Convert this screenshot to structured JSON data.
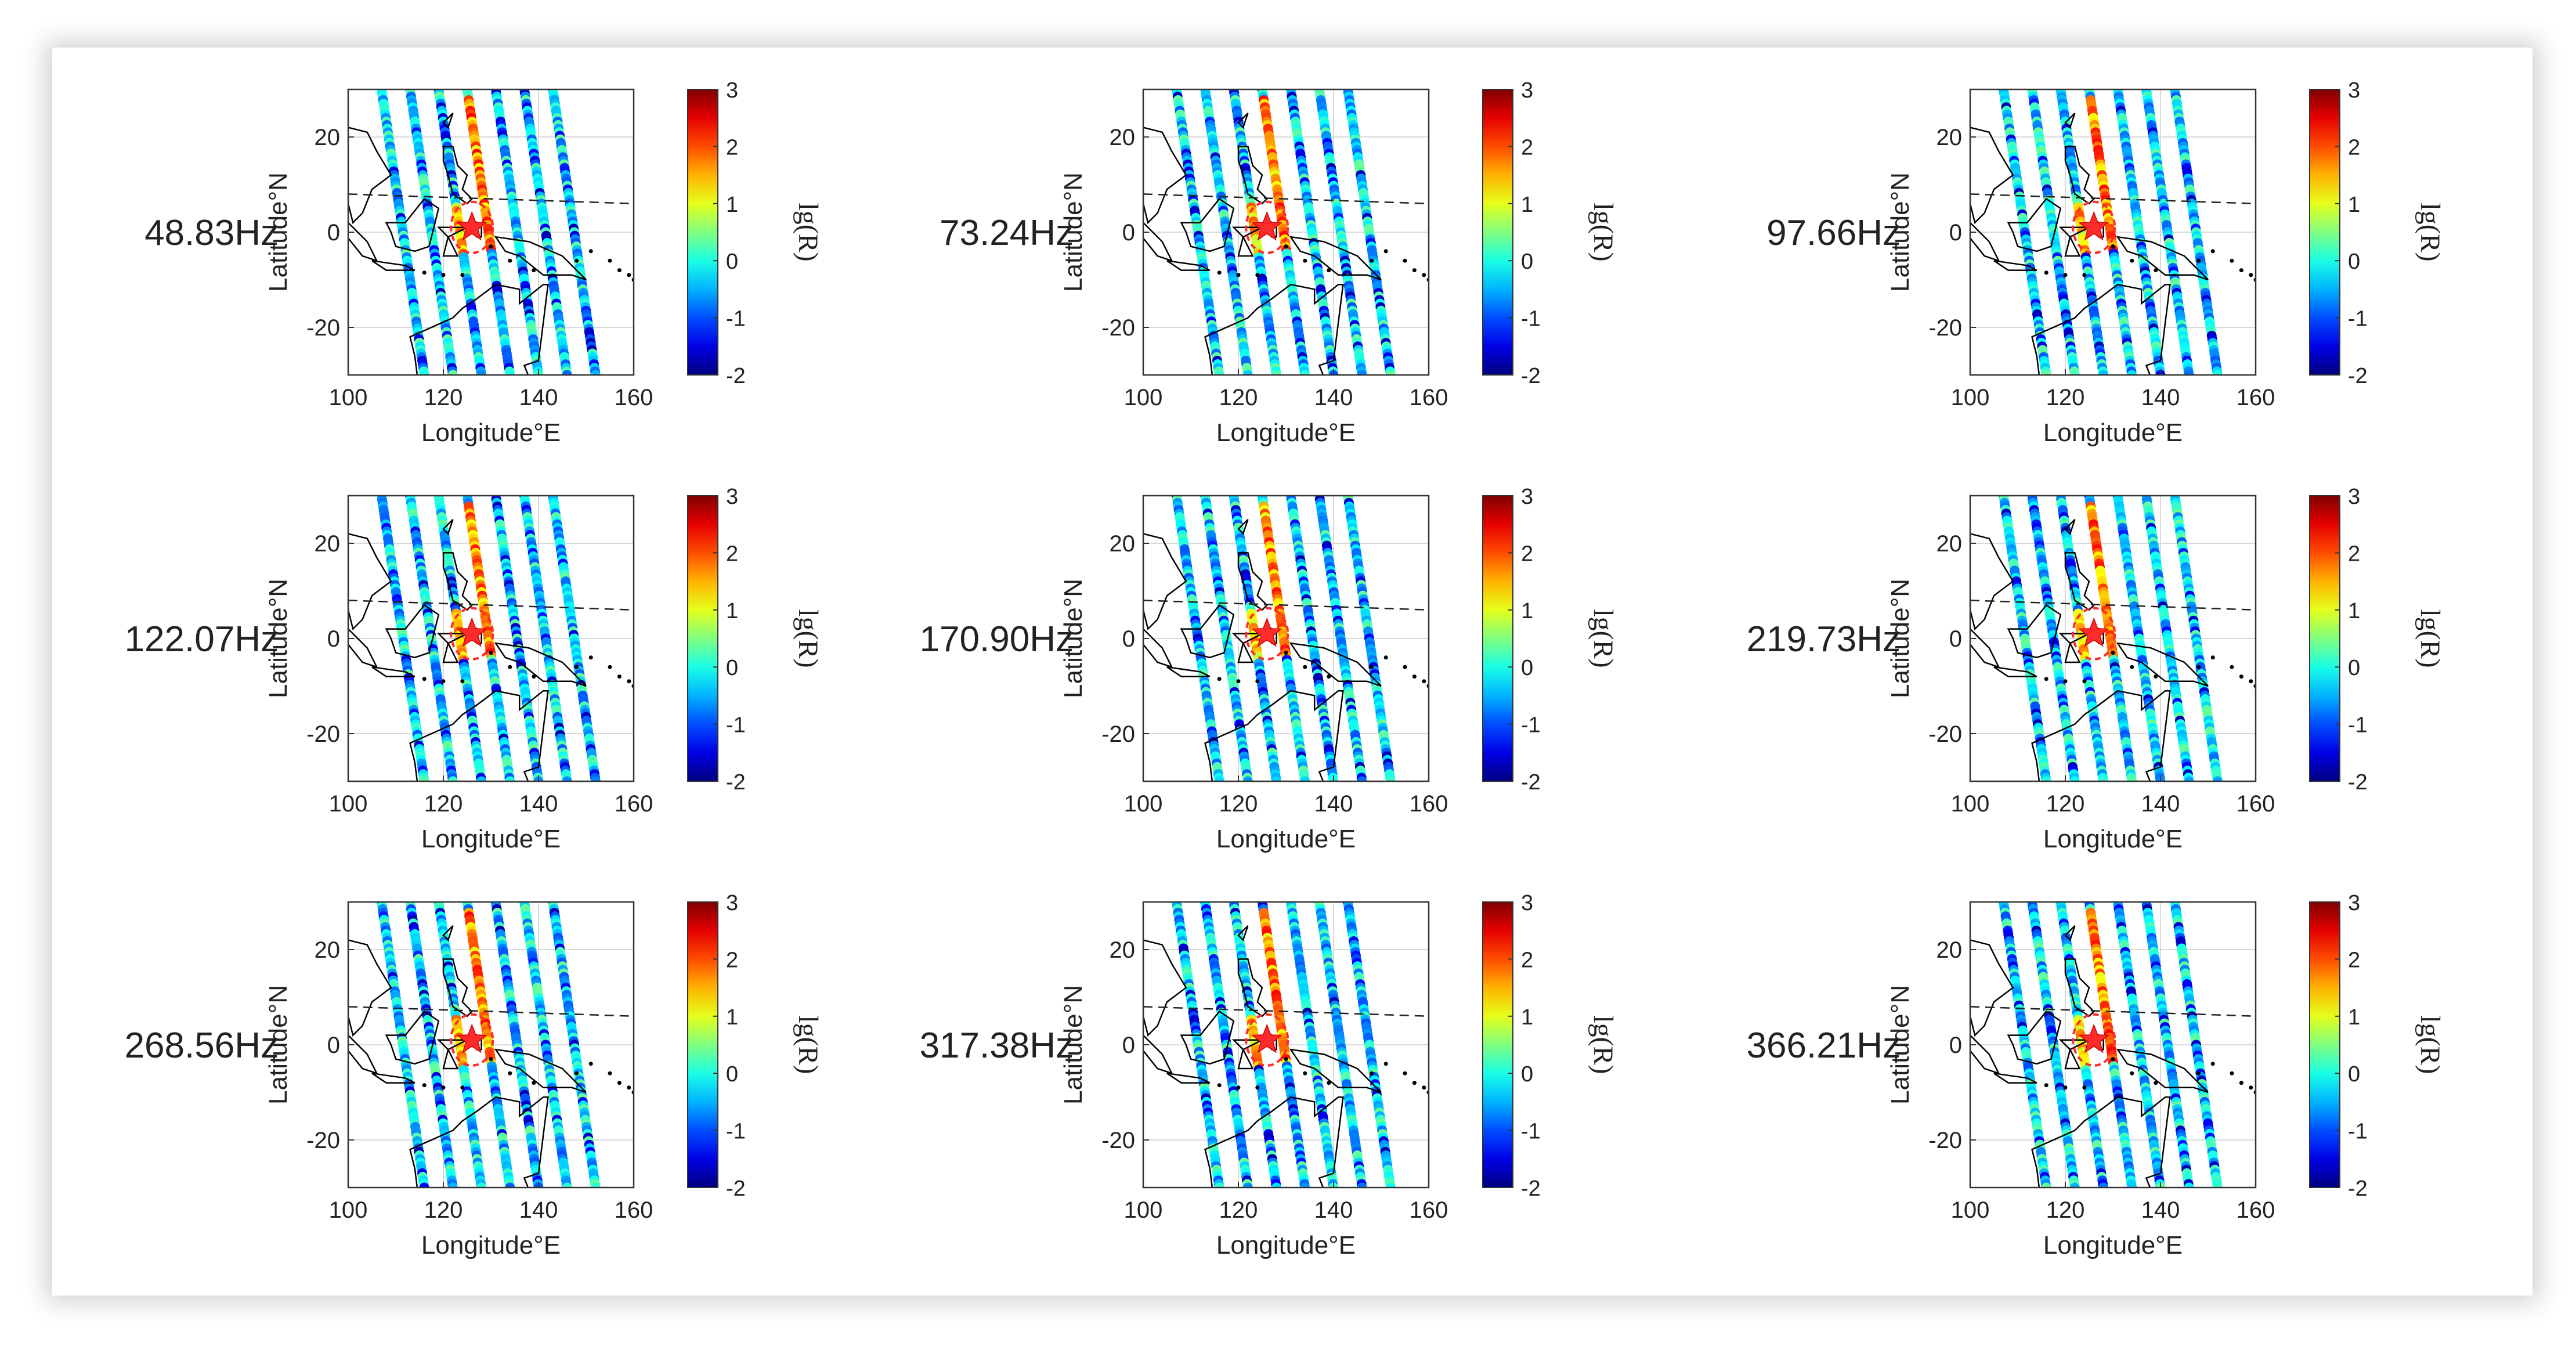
{
  "figure": {
    "panels": [
      {
        "label": "48.83Hz"
      },
      {
        "label": "73.24Hz"
      },
      {
        "label": "97.66Hz"
      },
      {
        "label": "122.07Hz"
      },
      {
        "label": "170.90Hz"
      },
      {
        "label": "219.73Hz"
      },
      {
        "label": "268.56Hz"
      },
      {
        "label": "317.38Hz"
      },
      {
        "label": "366.21Hz"
      }
    ]
  },
  "chart_data": {
    "type": "scatter",
    "panel_count": 9,
    "xlabel": "Longitude°E",
    "ylabel": "Latitude°N",
    "xlim": [
      100,
      160
    ],
    "ylim": [
      -30,
      30
    ],
    "xticks": [
      100,
      120,
      140,
      160
    ],
    "yticks": [
      -20,
      0,
      20
    ],
    "grid": true,
    "colorbar": {
      "label": "lg(R)",
      "range": [
        -2,
        3
      ],
      "ticks": [
        -2,
        -1,
        0,
        1,
        2,
        3
      ],
      "colormap": "jet"
    },
    "epicenter": {
      "lon": 126,
      "lat": 1,
      "marker": "star",
      "color": "#ff2a2a"
    },
    "dashed_line": {
      "lon": [
        100,
        160
      ],
      "lat": [
        8,
        6
      ]
    },
    "orbit_tracks": [
      {
        "lon_north": 107,
        "lon_south": 116
      },
      {
        "lon_north": 113,
        "lon_south": 122
      },
      {
        "lon_north": 119,
        "lon_south": 128
      },
      {
        "lon_north": 125,
        "lon_south": 134
      },
      {
        "lon_north": 131,
        "lon_south": 140
      },
      {
        "lon_north": 137,
        "lon_south": 146
      },
      {
        "lon_north": 143,
        "lon_south": 152
      }
    ],
    "colors": {
      "track_background": "#22ccee",
      "coast": "#000000",
      "grid": "#d9d9d9"
    }
  }
}
